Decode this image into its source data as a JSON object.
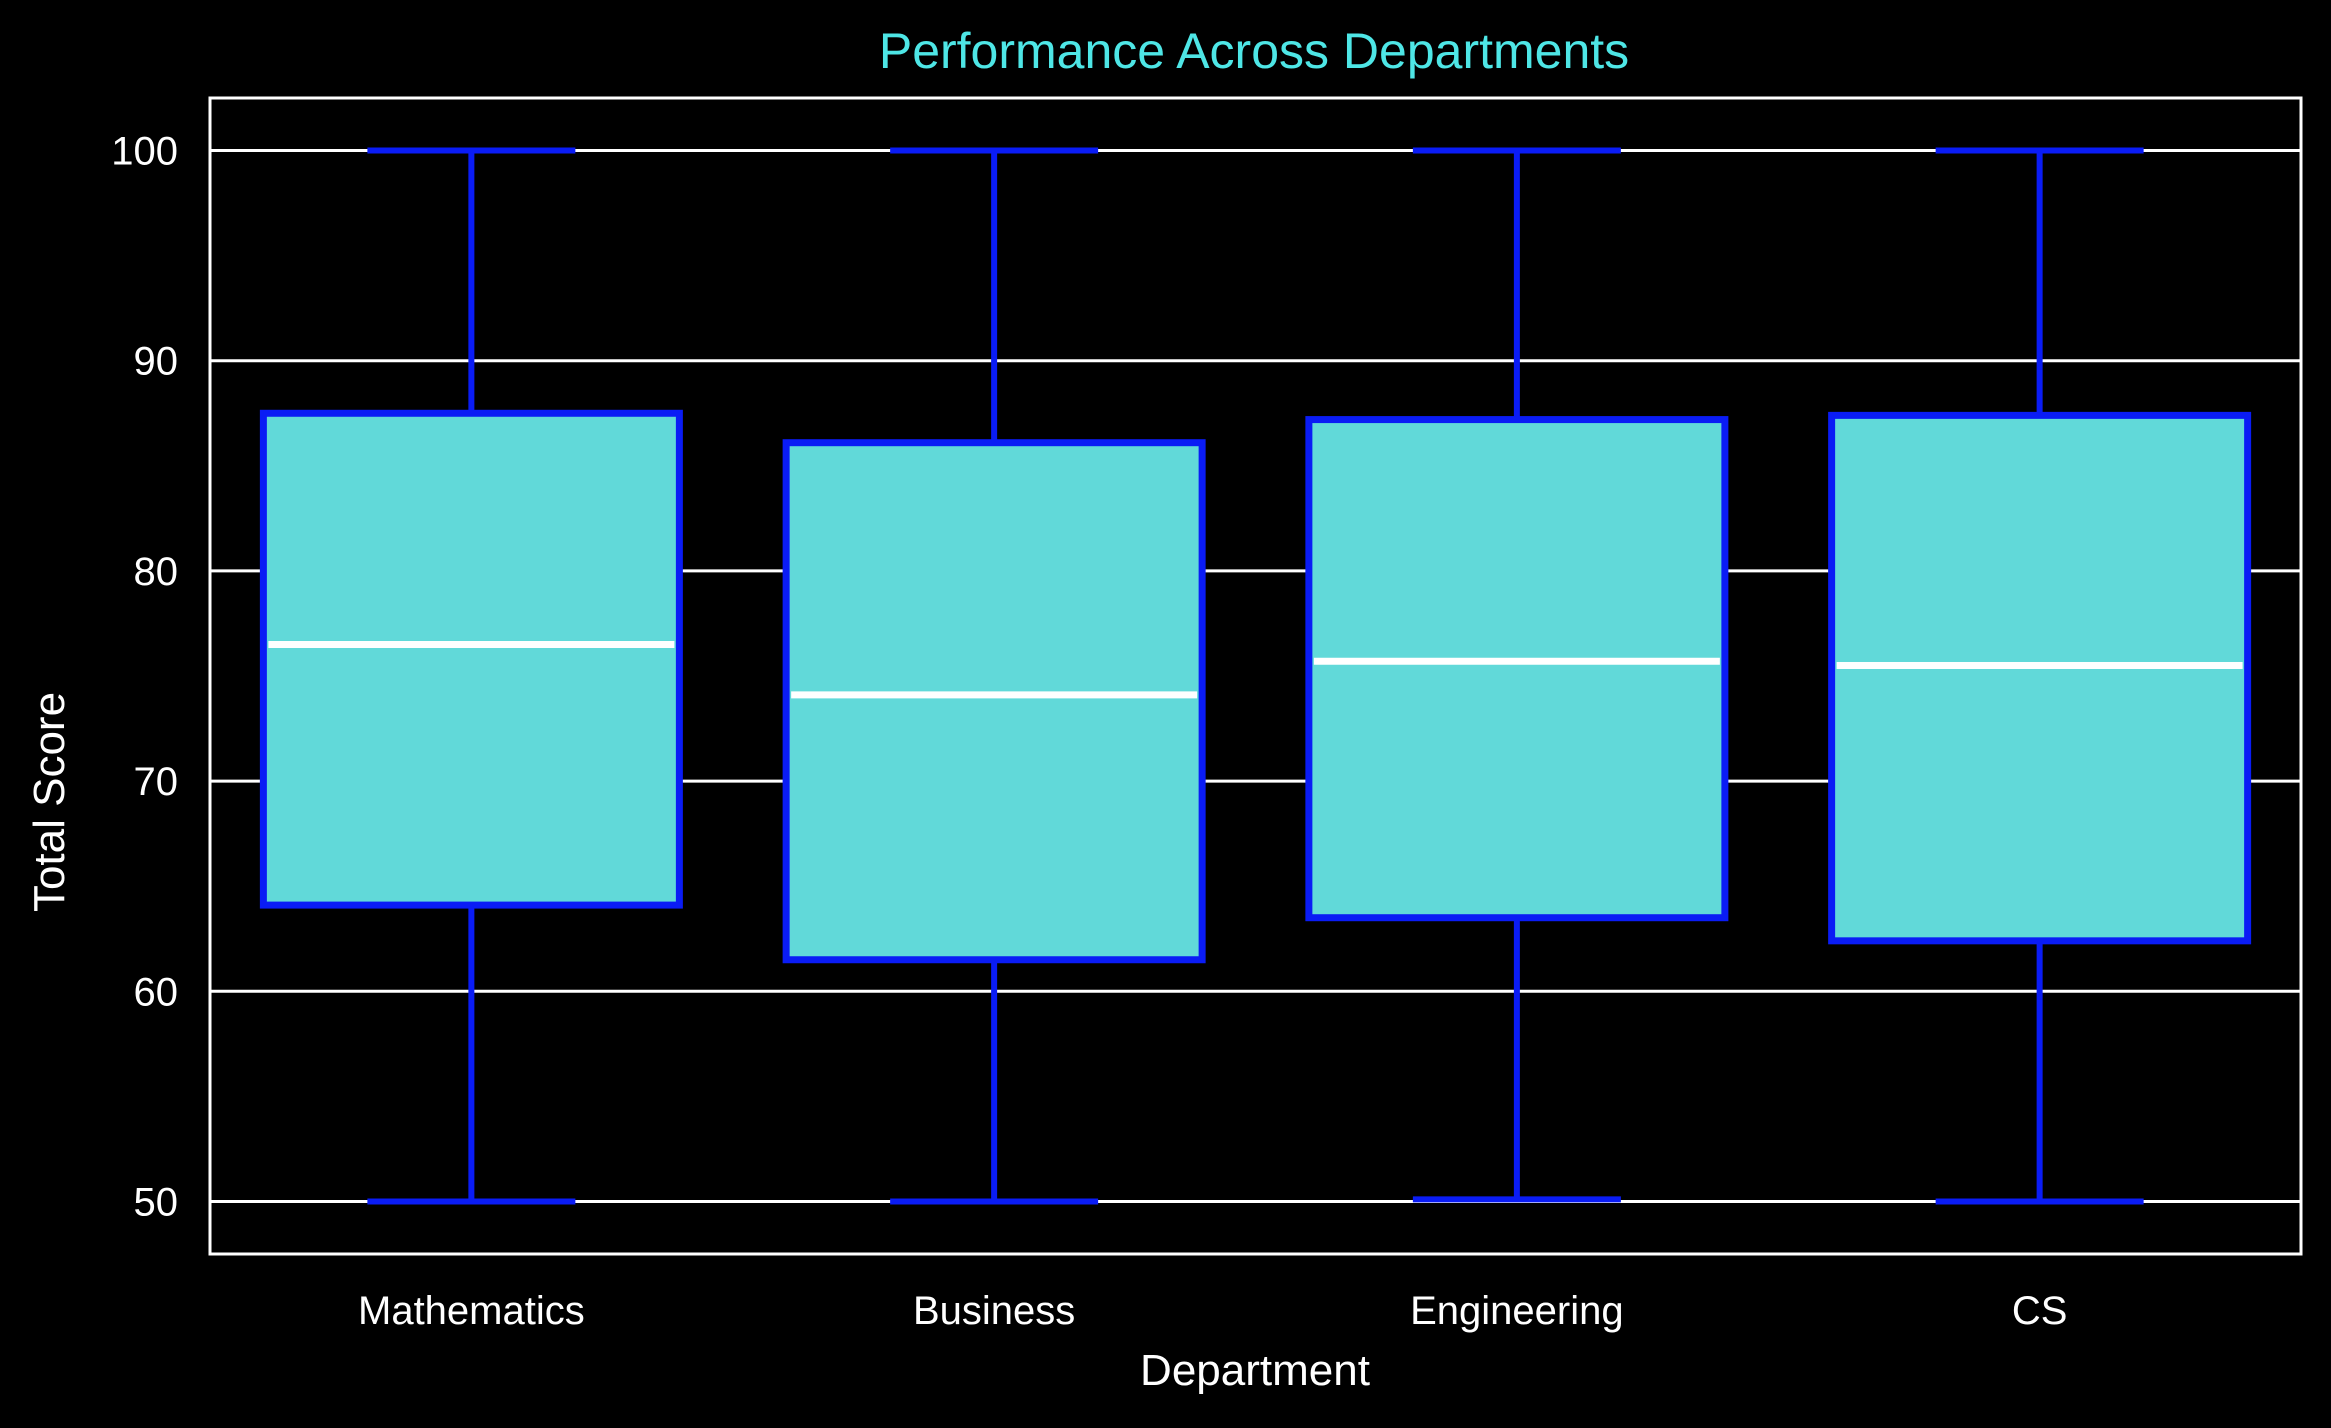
{
  "chart_data": {
    "type": "box",
    "title": "Performance Across Departments",
    "xlabel": "Department",
    "ylabel": "Total Score",
    "categories": [
      "Mathematics",
      "Business",
      "Engineering",
      "CS"
    ],
    "boxes": [
      {
        "category": "Mathematics",
        "whisker_low": 50,
        "q1": 64.1,
        "median": 76.5,
        "q3": 87.5,
        "whisker_high": 100
      },
      {
        "category": "Business",
        "whisker_low": 50,
        "q1": 61.5,
        "median": 74.1,
        "q3": 86.1,
        "whisker_high": 100
      },
      {
        "category": "Engineering",
        "whisker_low": 50.1,
        "q1": 63.5,
        "median": 75.7,
        "q3": 87.2,
        "whisker_high": 100
      },
      {
        "category": "CS",
        "whisker_low": 50,
        "q1": 62.4,
        "median": 75.5,
        "q3": 87.4,
        "whisker_high": 100
      }
    ],
    "yticks": [
      50,
      60,
      70,
      80,
      90,
      100
    ],
    "ylim": [
      47.5,
      102.5
    ],
    "grid": "horizontal",
    "legend": "none",
    "colors": {
      "background": "#000000",
      "box_fill": "#61d9d9",
      "box_edge": "#0a1cf5",
      "median": "#ffffff",
      "grid": "#ffffff",
      "frame": "#ffffff",
      "title": "#4ee6e6",
      "text": "#ffffff"
    }
  }
}
